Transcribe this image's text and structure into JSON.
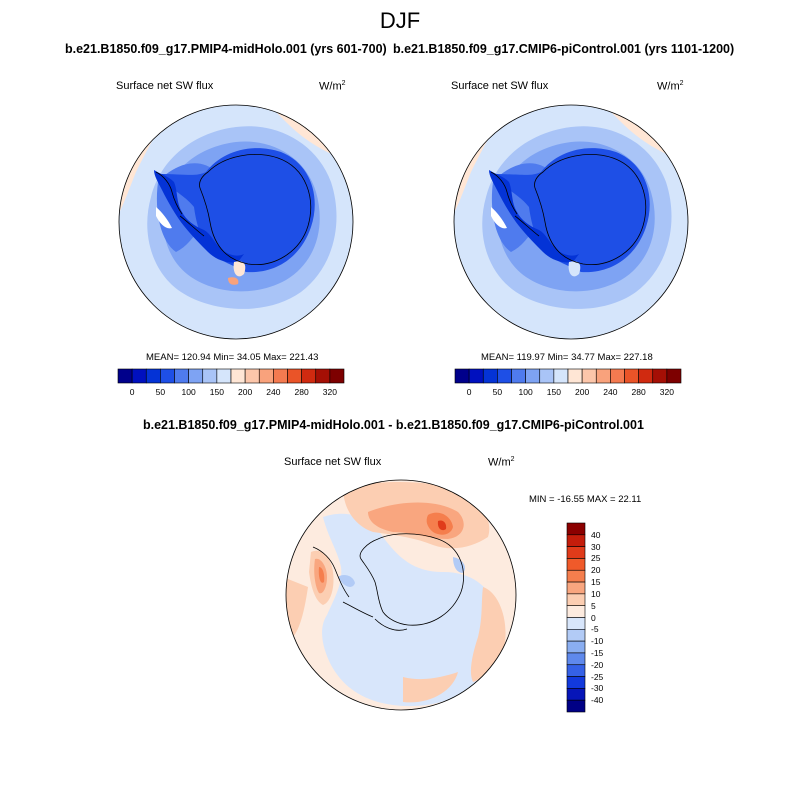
{
  "figure": {
    "season": "DJF",
    "panel_a_title": "b.e21.B1850.f09_g17.PMIP4-midHolo.001 (yrs 601-700)",
    "panel_b_title": "b.e21.B1850.f09_g17.CMIP6-piControl.001 (yrs 1101-1200)",
    "diff_title": "b.e21.B1850.f09_g17.PMIP4-midHolo.001 - b.e21.B1850.f09_g17.CMIP6-piControl.001"
  },
  "panel_a": {
    "variable": "Surface net SW flux",
    "units_base": "W/m",
    "units_exp": "2",
    "stats": "MEAN= 120.94  Min=  34.05  Max= 221.43"
  },
  "panel_b": {
    "variable": "Surface net SW flux",
    "units_base": "W/m",
    "units_exp": "2",
    "stats": "MEAN= 119.97  Min=  34.77  Max= 227.18"
  },
  "diff": {
    "variable": "Surface net SW flux",
    "units_base": "W/m",
    "units_exp": "2",
    "stats": "MIN = -16.55 MAX =  22.11"
  },
  "abs_colorbar": {
    "colors": [
      "#00008b",
      "#0010bf",
      "#0433d6",
      "#1e4fe6",
      "#4f7bee",
      "#7ea3f3",
      "#a9c4f7",
      "#d5e5fb",
      "#ffe6d5",
      "#fcc6aa",
      "#f9a27c",
      "#f47a50",
      "#ea5428",
      "#d02a10",
      "#a50f05",
      "#7d0000"
    ],
    "tick_labels": [
      "0",
      "50",
      "100",
      "150",
      "200",
      "240",
      "280",
      "320"
    ],
    "tick_slots": [
      1,
      3,
      5,
      7,
      9,
      11,
      13,
      15
    ]
  },
  "diff_colorbar": {
    "colors_top_to_bottom": [
      "#8b0000",
      "#c41d0b",
      "#e03b1a",
      "#f05a2a",
      "#f57e4d",
      "#f9a67f",
      "#fcceb2",
      "#fdebdf",
      "#d8e6fb",
      "#b2cbf6",
      "#8aaef1",
      "#5f89ec",
      "#3561e6",
      "#1239dc",
      "#0615b8",
      "#000085"
    ],
    "tick_labels": [
      "40",
      "30",
      "25",
      "20",
      "15",
      "10",
      "5",
      "0",
      "-5",
      "-10",
      "-15",
      "-20",
      "-25",
      "-30",
      "-40"
    ]
  },
  "chart_data": {
    "type": "map",
    "projection": "south polar stereographic",
    "season": "DJF",
    "variable": "Surface net SW flux",
    "units": "W/m2",
    "panels": [
      {
        "title": "b.e21.B1850.f09_g17.PMIP4-midHolo.001 (yrs 601-700)",
        "mean": 120.94,
        "min": 34.05,
        "max": 221.43,
        "contour_levels": [
          0,
          25,
          50,
          75,
          100,
          125,
          150,
          175,
          200,
          220,
          240,
          260,
          280,
          300,
          320
        ]
      },
      {
        "title": "b.e21.B1850.f09_g17.CMIP6-piControl.001 (yrs 1101-1200)",
        "mean": 119.97,
        "min": 34.77,
        "max": 227.18,
        "contour_levels": [
          0,
          25,
          50,
          75,
          100,
          125,
          150,
          175,
          200,
          220,
          240,
          260,
          280,
          300,
          320
        ]
      },
      {
        "title": "b.e21.B1850.f09_g17.PMIP4-midHolo.001 - b.e21.B1850.f09_g17.CMIP6-piControl.001",
        "min": -16.55,
        "max": 22.11,
        "contour_levels": [
          -40,
          -30,
          -25,
          -20,
          -15,
          -10,
          -5,
          0,
          5,
          10,
          15,
          20,
          25,
          30,
          40
        ]
      }
    ]
  }
}
